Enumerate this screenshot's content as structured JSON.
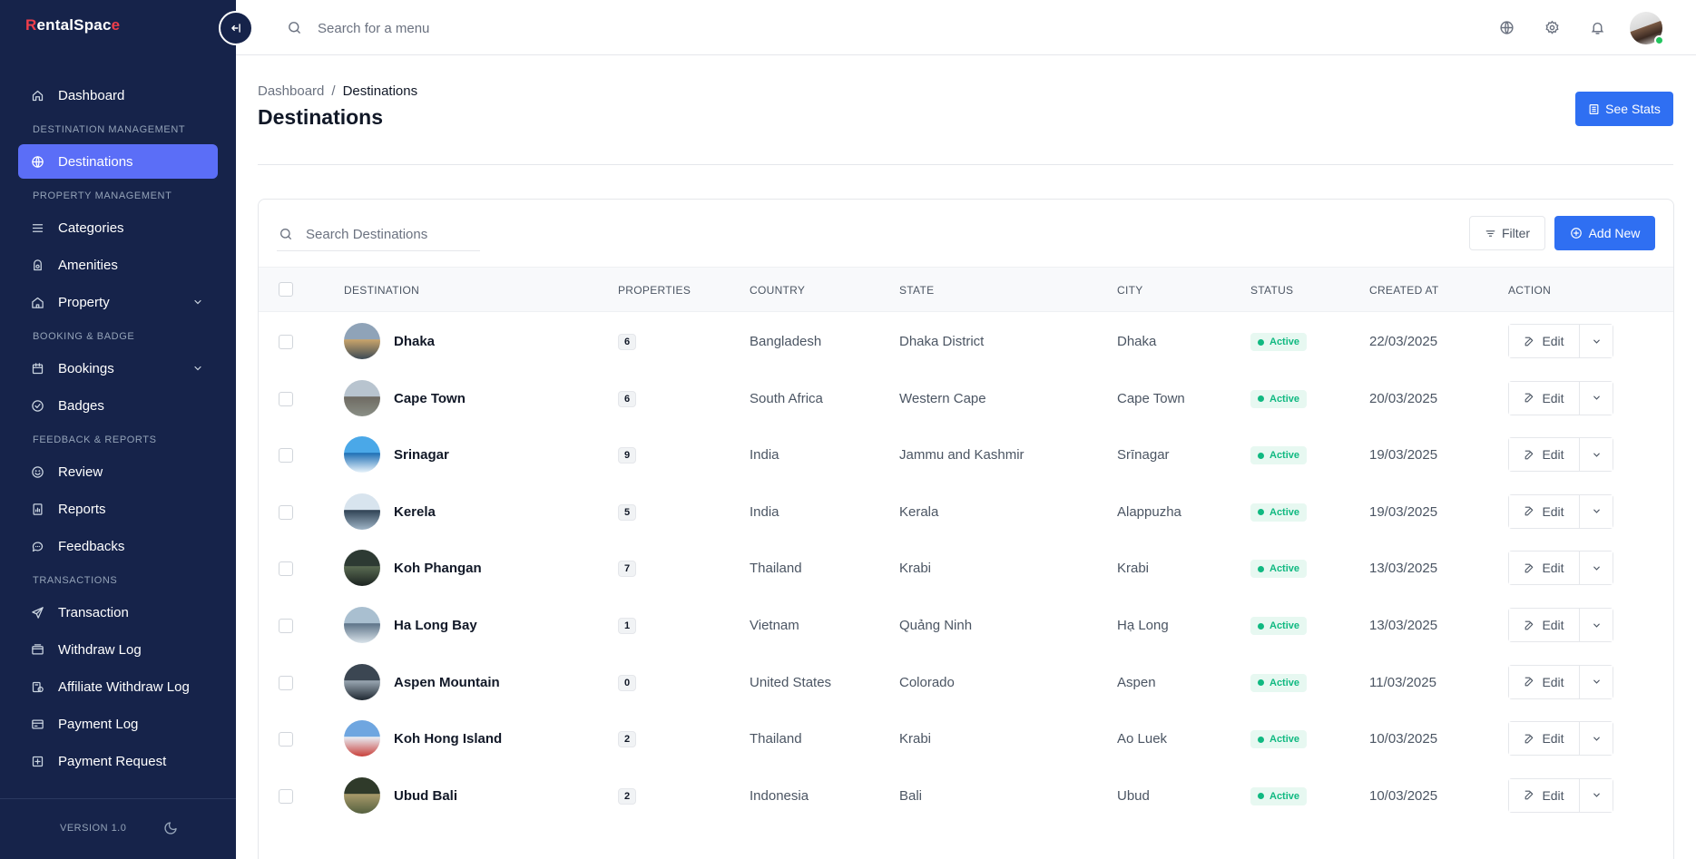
{
  "app": {
    "logo_first": "R",
    "logo_rest": "entalSpac",
    "logo_last": "e",
    "version": "VERSION 1.0"
  },
  "sidebar": {
    "sections": [
      {
        "title": "",
        "items": [
          {
            "label": "Dashboard",
            "icon": "home-icon",
            "active": false,
            "expandable": false
          }
        ]
      },
      {
        "title": "DESTINATION MANAGEMENT",
        "items": [
          {
            "label": "Destinations",
            "icon": "globe-icon",
            "active": true,
            "expandable": false
          }
        ]
      },
      {
        "title": "PROPERTY MANAGEMENT",
        "items": [
          {
            "label": "Categories",
            "icon": "list-icon",
            "active": false,
            "expandable": false
          },
          {
            "label": "Amenities",
            "icon": "amenities-icon",
            "active": false,
            "expandable": false
          },
          {
            "label": "Property",
            "icon": "house-icon",
            "active": false,
            "expandable": true
          }
        ]
      },
      {
        "title": "BOOKING & BADGE",
        "items": [
          {
            "label": "Bookings",
            "icon": "calendar-icon",
            "active": false,
            "expandable": true
          },
          {
            "label": "Badges",
            "icon": "badge-icon",
            "active": false,
            "expandable": false
          }
        ]
      },
      {
        "title": "FEEDBACK & REPORTS",
        "items": [
          {
            "label": "Review",
            "icon": "smile-icon",
            "active": false,
            "expandable": false
          },
          {
            "label": "Reports",
            "icon": "report-icon",
            "active": false,
            "expandable": false
          },
          {
            "label": "Feedbacks",
            "icon": "chat-icon",
            "active": false,
            "expandable": false
          }
        ]
      },
      {
        "title": "TRANSACTIONS",
        "items": [
          {
            "label": "Transaction",
            "icon": "send-icon",
            "active": false,
            "expandable": false
          },
          {
            "label": "Withdraw Log",
            "icon": "wallet-icon",
            "active": false,
            "expandable": false
          },
          {
            "label": "Affiliate Withdraw Log",
            "icon": "affiliate-icon",
            "active": false,
            "expandable": false
          },
          {
            "label": "Payment Log",
            "icon": "card-icon",
            "active": false,
            "expandable": false
          },
          {
            "label": "Payment Request",
            "icon": "request-icon",
            "active": false,
            "expandable": false
          }
        ]
      }
    ]
  },
  "topbar": {
    "search_placeholder": "Search for a menu"
  },
  "page": {
    "breadcrumb": [
      "Dashboard",
      "Destinations"
    ],
    "breadcrumb_sep": "/",
    "title": "Destinations",
    "stats_button": "See Stats"
  },
  "table": {
    "search_placeholder": "Search Destinations",
    "filter_label": "Filter",
    "add_label": "Add New",
    "edit_label": "Edit",
    "columns": [
      "DESTINATION",
      "PROPERTIES",
      "COUNTRY",
      "STATE",
      "CITY",
      "STATUS",
      "CREATED AT",
      "ACTION"
    ],
    "rows": [
      {
        "destination": "Dhaka",
        "properties": "6",
        "country": "Bangladesh",
        "state": "Dhaka District",
        "city": "Dhaka",
        "status": "Active",
        "created": "22/03/2025",
        "colors": [
          "#8fa3b8",
          "#c9a46a",
          "#3c4a55"
        ]
      },
      {
        "destination": "Cape Town",
        "properties": "6",
        "country": "South Africa",
        "state": "Western Cape",
        "city": "Cape Town",
        "status": "Active",
        "created": "20/03/2025",
        "colors": [
          "#b8c4cf",
          "#6e6a62",
          "#8a8f86"
        ]
      },
      {
        "destination": "Srinagar",
        "properties": "9",
        "country": "India",
        "state": "Jammu and Kashmir",
        "city": "Srīnagar",
        "status": "Active",
        "created": "19/03/2025",
        "colors": [
          "#4aa8e8",
          "#1e6fb5",
          "#e8f3fb"
        ]
      },
      {
        "destination": "Kerela",
        "properties": "5",
        "country": "India",
        "state": "Kerala",
        "city": "Alappuzha",
        "status": "Active",
        "created": "19/03/2025",
        "colors": [
          "#d8e4ee",
          "#2f4254",
          "#9fb4c6"
        ]
      },
      {
        "destination": "Koh Phangan",
        "properties": "7",
        "country": "Thailand",
        "state": "Krabi",
        "city": "Krabi",
        "status": "Active",
        "created": "13/03/2025",
        "colors": [
          "#2d3a33",
          "#5a6b52",
          "#1b2320"
        ]
      },
      {
        "destination": "Ha Long Bay",
        "properties": "1",
        "country": "Vietnam",
        "state": "Quảng Ninh",
        "city": "Hạ Long",
        "status": "Active",
        "created": "13/03/2025",
        "colors": [
          "#a9bfd0",
          "#5d7388",
          "#d9e3ea"
        ]
      },
      {
        "destination": "Aspen Mountain",
        "properties": "0",
        "country": "United States",
        "state": "Colorado",
        "city": "Aspen",
        "status": "Active",
        "created": "11/03/2025",
        "colors": [
          "#3b4652",
          "#9aa7b2",
          "#1f2831"
        ]
      },
      {
        "destination": "Koh Hong Island",
        "properties": "2",
        "country": "Thailand",
        "state": "Krabi",
        "city": "Ao Luek",
        "status": "Active",
        "created": "10/03/2025",
        "colors": [
          "#6fa6e0",
          "#e8eef5",
          "#c9403a"
        ]
      },
      {
        "destination": "Ubud Bali",
        "properties": "2",
        "country": "Indonesia",
        "state": "Bali",
        "city": "Ubud",
        "status": "Active",
        "created": "10/03/2025",
        "colors": [
          "#2f3a2a",
          "#a89a6a",
          "#55603f"
        ]
      }
    ]
  }
}
